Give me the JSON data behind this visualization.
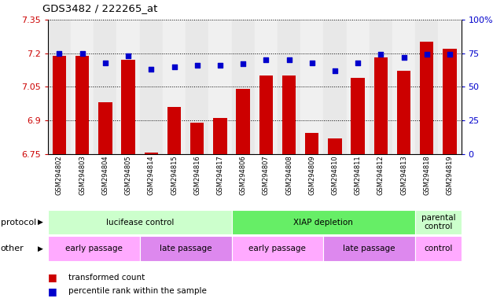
{
  "title": "GDS3482 / 222265_at",
  "samples": [
    "GSM294802",
    "GSM294803",
    "GSM294804",
    "GSM294805",
    "GSM294814",
    "GSM294815",
    "GSM294816",
    "GSM294817",
    "GSM294806",
    "GSM294807",
    "GSM294808",
    "GSM294809",
    "GSM294810",
    "GSM294811",
    "GSM294812",
    "GSM294813",
    "GSM294818",
    "GSM294819"
  ],
  "bar_values": [
    7.19,
    7.19,
    6.98,
    7.17,
    6.755,
    6.96,
    6.89,
    6.91,
    7.04,
    7.1,
    7.1,
    6.845,
    6.82,
    7.09,
    7.18,
    7.12,
    7.25,
    7.22
  ],
  "dot_values": [
    75,
    75,
    68,
    73,
    63,
    65,
    66,
    66,
    67,
    70,
    70,
    68,
    62,
    68,
    74,
    72,
    74,
    74
  ],
  "ylim_left": [
    6.75,
    7.35
  ],
  "ylim_right": [
    0,
    100
  ],
  "yticks_left": [
    6.75,
    6.9,
    7.05,
    7.2,
    7.35
  ],
  "yticks_right": [
    0,
    25,
    50,
    75,
    100
  ],
  "ytick_labels_right": [
    "0",
    "25",
    "50",
    "75",
    "100%"
  ],
  "bar_color": "#cc0000",
  "dot_color": "#0000cc",
  "col_bg_even": "#e8e8e8",
  "col_bg_odd": "#f0f0f0",
  "protocol_labels": [
    {
      "text": "lucifease control",
      "start": 0,
      "end": 8,
      "color": "#ccffcc"
    },
    {
      "text": "XIAP depletion",
      "start": 8,
      "end": 16,
      "color": "#66ee66"
    },
    {
      "text": "parental\ncontrol",
      "start": 16,
      "end": 18,
      "color": "#ccffcc"
    }
  ],
  "other_labels": [
    {
      "text": "early passage",
      "start": 0,
      "end": 4,
      "color": "#ffaaff"
    },
    {
      "text": "late passage",
      "start": 4,
      "end": 8,
      "color": "#dd88ee"
    },
    {
      "text": "early passage",
      "start": 8,
      "end": 12,
      "color": "#ffaaff"
    },
    {
      "text": "late passage",
      "start": 12,
      "end": 16,
      "color": "#dd88ee"
    },
    {
      "text": "control",
      "start": 16,
      "end": 18,
      "color": "#ffaaff"
    }
  ],
  "legend_items": [
    {
      "label": "transformed count",
      "color": "#cc0000"
    },
    {
      "label": "percentile rank within the sample",
      "color": "#0000cc"
    }
  ],
  "protocol_row_label": "protocol",
  "other_row_label": "other",
  "bg_color": "#ffffff",
  "tick_label_color_left": "#cc0000",
  "tick_label_color_right": "#0000cc"
}
